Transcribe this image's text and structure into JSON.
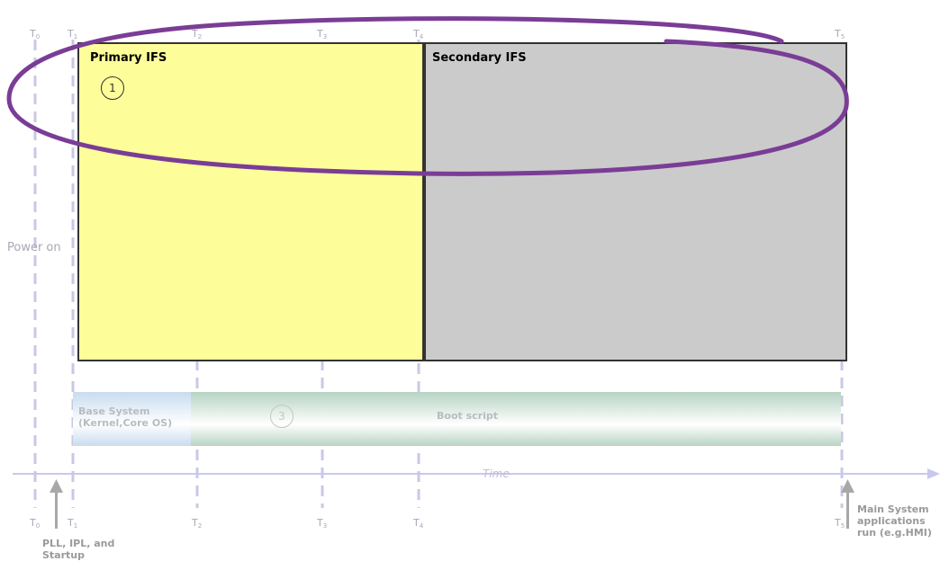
{
  "timeline": {
    "top_markers": [
      {
        "id": "t0",
        "base": "T",
        "sub": "0"
      },
      {
        "id": "t1",
        "base": "T",
        "sub": "1"
      },
      {
        "id": "t2",
        "base": "T",
        "sub": "2"
      },
      {
        "id": "t3",
        "base": "T",
        "sub": "3"
      },
      {
        "id": "t4",
        "base": "T",
        "sub": "4"
      },
      {
        "id": "t5",
        "base": "T",
        "sub": "5"
      }
    ],
    "bottom_markers": [
      {
        "id": "t0",
        "base": "T",
        "sub": "0"
      },
      {
        "id": "t1",
        "base": "T",
        "sub": "1"
      },
      {
        "id": "t2",
        "base": "T",
        "sub": "2"
      },
      {
        "id": "t3",
        "base": "T",
        "sub": "3"
      },
      {
        "id": "t4",
        "base": "T",
        "sub": "4"
      },
      {
        "id": "t5",
        "base": "T",
        "sub": "5"
      }
    ],
    "axis_label": "Time",
    "power_on_label": "Power on"
  },
  "boxes": {
    "primary": {
      "title": "Primary IFS",
      "color": "#fdfd9a",
      "step": "1"
    },
    "secondary": {
      "title": "Secondary IFS",
      "color": "#cbcbcb"
    }
  },
  "boot_bar": {
    "base_system_line1": "Base System",
    "base_system_line2": "(Kernel,Core OS)",
    "boot_script": "Boot script",
    "step": "3"
  },
  "annotations": {
    "pll_line1": "PLL, IPL, and",
    "pll_line2": "Startup",
    "main_line1": "Main System",
    "main_line2": "applications",
    "main_line3": "run (e.g.HMI)"
  },
  "colors": {
    "highlight_ellipse": "#7a3d96",
    "dashed_line": "#c8c8e6",
    "axis": "#c8c8ee"
  }
}
